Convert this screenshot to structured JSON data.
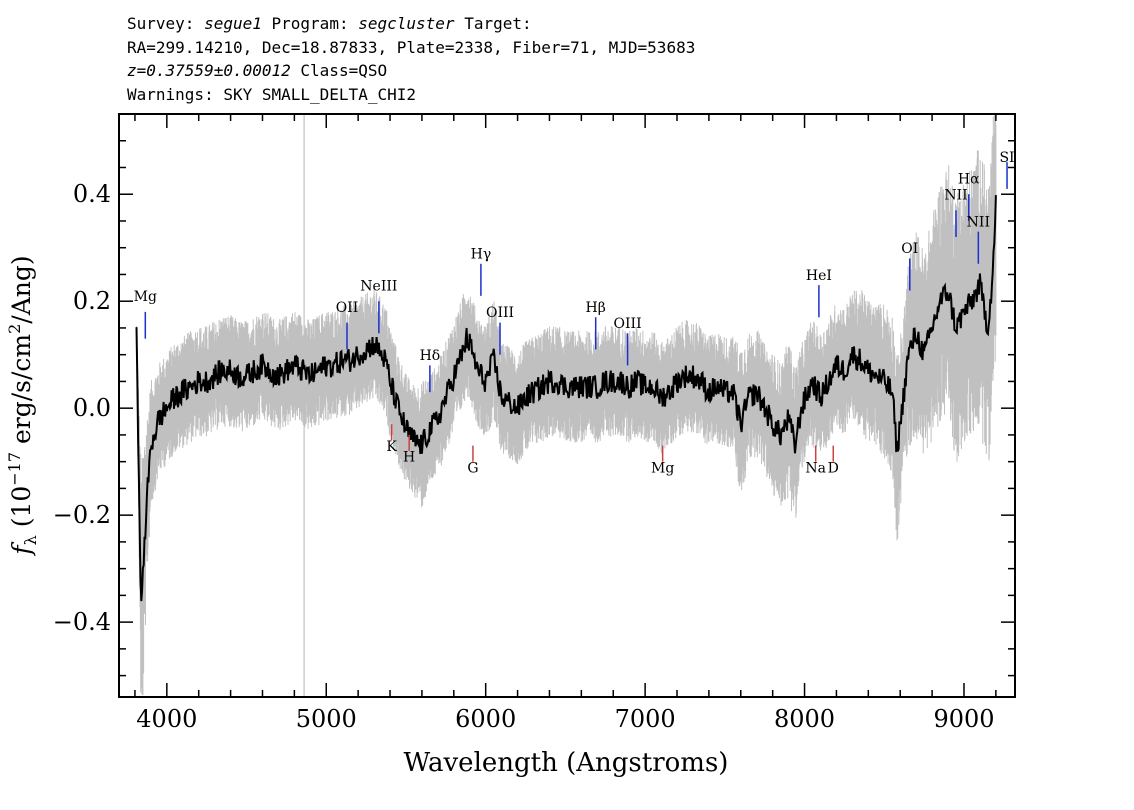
{
  "header": {
    "survey_label": "Survey:",
    "survey": "segue1",
    "program_label": "Program:",
    "program": "segcluster",
    "target_label": "Target:",
    "line2": "RA=299.14210, Dec=18.87833, Plate=2338, Fiber=71, MJD=53683",
    "redshift": "z=0.37559±0.00012",
    "class_text": "Class=QSO",
    "warnings": "Warnings: SKY SMALL_DELTA_CHI2"
  },
  "chart_data": {
    "type": "line",
    "title": "",
    "xlabel": "Wavelength (Angstroms)",
    "ylabel": "f_λ (10^-17 erg/s/cm²/Ang)",
    "xlim": [
      3700,
      9320
    ],
    "ylim": [
      -0.54,
      0.55
    ],
    "xticks": [
      4000,
      5000,
      6000,
      7000,
      8000,
      9000
    ],
    "xtick_labels": [
      "4000",
      "5000",
      "6000",
      "7000",
      "8000",
      "9000"
    ],
    "yticks": [
      -0.4,
      -0.2,
      0.0,
      0.2,
      0.4
    ],
    "ytick_labels": [
      "−0.4",
      "−0.2",
      "0.0",
      "0.2",
      "0.4"
    ],
    "grid": false,
    "series": [
      {
        "color": "#000000",
        "x": [
          3810,
          3840,
          3860,
          3880,
          3900,
          3950,
          4000,
          4050,
          4100,
          4150,
          4200,
          4250,
          4300,
          4350,
          4400,
          4450,
          4500,
          4550,
          4600,
          4650,
          4700,
          4750,
          4800,
          4850,
          4900,
          4950,
          5000,
          5050,
          5100,
          5150,
          5200,
          5250,
          5300,
          5350,
          5380,
          5400,
          5450,
          5500,
          5550,
          5600,
          5650,
          5700,
          5750,
          5800,
          5850,
          5880,
          5900,
          5950,
          6000,
          6050,
          6100,
          6150,
          6200,
          6250,
          6300,
          6350,
          6400,
          6450,
          6500,
          6550,
          6600,
          6650,
          6700,
          6750,
          6800,
          6850,
          6900,
          6950,
          7000,
          7050,
          7100,
          7150,
          7200,
          7250,
          7300,
          7350,
          7400,
          7450,
          7500,
          7550,
          7600,
          7650,
          7700,
          7750,
          7800,
          7850,
          7900,
          7940,
          7980,
          8050,
          8100,
          8150,
          8200,
          8250,
          8300,
          8350,
          8400,
          8450,
          8500,
          8550,
          8580,
          8620,
          8650,
          8700,
          8750,
          8800,
          8850,
          8900,
          8950,
          9000,
          9050,
          9100,
          9150,
          9180,
          9200
        ],
        "values": [
          0.13,
          -0.38,
          -0.25,
          -0.15,
          -0.07,
          -0.02,
          0.0,
          0.02,
          0.03,
          0.04,
          0.05,
          0.05,
          0.06,
          0.07,
          0.07,
          0.06,
          0.06,
          0.07,
          0.08,
          0.07,
          0.06,
          0.07,
          0.08,
          0.07,
          0.06,
          0.07,
          0.08,
          0.08,
          0.09,
          0.09,
          0.1,
          0.11,
          0.12,
          0.1,
          0.08,
          0.05,
          0.0,
          -0.04,
          -0.06,
          -0.07,
          -0.04,
          -0.02,
          0.02,
          0.06,
          0.1,
          0.13,
          0.12,
          0.07,
          0.05,
          0.09,
          0.02,
          0.01,
          0.0,
          0.02,
          0.03,
          0.04,
          0.05,
          0.05,
          0.04,
          0.04,
          0.04,
          0.04,
          0.04,
          0.05,
          0.05,
          0.05,
          0.04,
          0.05,
          0.04,
          0.04,
          0.02,
          0.03,
          0.05,
          0.06,
          0.06,
          0.05,
          0.03,
          0.04,
          0.03,
          0.03,
          -0.03,
          0.02,
          0.03,
          0.0,
          -0.03,
          -0.05,
          -0.02,
          -0.07,
          0.0,
          0.05,
          0.02,
          0.05,
          0.08,
          0.07,
          0.1,
          0.09,
          0.07,
          0.06,
          0.05,
          0.03,
          -0.08,
          0.02,
          0.1,
          0.14,
          0.1,
          0.15,
          0.2,
          0.22,
          0.15,
          0.18,
          0.2,
          0.23,
          0.15,
          0.25,
          0.38
        ]
      },
      {
        "color": "#c0c0c0",
        "x": [
          3810,
          3840,
          3860,
          3880,
          3900,
          3950,
          4000,
          4050,
          4100,
          4150,
          4200,
          4250,
          4300,
          4350,
          4400,
          4450,
          4500,
          4550,
          4600,
          4650,
          4700,
          4750,
          4800,
          4850,
          4900,
          4950,
          5000,
          5050,
          5100,
          5150,
          5200,
          5250,
          5300,
          5350,
          5380,
          5400,
          5450,
          5500,
          5550,
          5600,
          5650,
          5700,
          5750,
          5800,
          5850,
          5880,
          5900,
          5950,
          6000,
          6050,
          6100,
          6150,
          6200,
          6250,
          6300,
          6350,
          6400,
          6450,
          6500,
          6550,
          6600,
          6650,
          6700,
          6750,
          6800,
          6850,
          6900,
          6950,
          7000,
          7050,
          7100,
          7150,
          7200,
          7250,
          7300,
          7350,
          7400,
          7450,
          7500,
          7550,
          7600,
          7650,
          7700,
          7750,
          7800,
          7850,
          7900,
          7940,
          7980,
          8050,
          8100,
          8150,
          8200,
          8250,
          8300,
          8350,
          8400,
          8450,
          8500,
          8550,
          8580,
          8620,
          8650,
          8700,
          8750,
          8800,
          8850,
          8900,
          8950,
          9000,
          9050,
          9100,
          9150,
          9180,
          9200
        ],
        "values": [
          0.13,
          -0.38,
          -0.25,
          -0.15,
          -0.07,
          -0.02,
          0.0,
          0.02,
          0.03,
          0.04,
          0.05,
          0.05,
          0.06,
          0.07,
          0.07,
          0.06,
          0.06,
          0.07,
          0.08,
          0.07,
          0.06,
          0.07,
          0.08,
          0.07,
          0.06,
          0.07,
          0.08,
          0.08,
          0.09,
          0.09,
          0.1,
          0.11,
          0.12,
          0.1,
          0.08,
          0.05,
          0.0,
          -0.04,
          -0.06,
          -0.07,
          -0.04,
          -0.02,
          0.02,
          0.06,
          0.1,
          0.13,
          0.12,
          0.07,
          0.05,
          0.09,
          0.02,
          0.01,
          0.0,
          0.02,
          0.03,
          0.04,
          0.05,
          0.05,
          0.04,
          0.04,
          0.04,
          0.04,
          0.04,
          0.05,
          0.05,
          0.05,
          0.04,
          0.05,
          0.04,
          0.04,
          0.02,
          0.03,
          0.05,
          0.06,
          0.06,
          0.05,
          0.03,
          0.04,
          0.03,
          0.03,
          -0.03,
          0.02,
          0.03,
          0.0,
          -0.03,
          -0.05,
          -0.02,
          -0.07,
          0.0,
          0.05,
          0.02,
          0.05,
          0.08,
          0.07,
          0.1,
          0.09,
          0.07,
          0.06,
          0.05,
          0.03,
          -0.08,
          0.02,
          0.1,
          0.14,
          0.1,
          0.15,
          0.2,
          0.22,
          0.15,
          0.18,
          0.2,
          0.23,
          0.15,
          0.25,
          0.38
        ],
        "spread": [
          0.02,
          0.18,
          0.14,
          0.1,
          0.08,
          0.07,
          0.07,
          0.07,
          0.07,
          0.07,
          0.07,
          0.07,
          0.07,
          0.07,
          0.07,
          0.07,
          0.07,
          0.07,
          0.07,
          0.07,
          0.07,
          0.07,
          0.07,
          0.07,
          0.07,
          0.07,
          0.07,
          0.07,
          0.07,
          0.07,
          0.07,
          0.07,
          0.07,
          0.07,
          0.07,
          0.07,
          0.07,
          0.07,
          0.07,
          0.08,
          0.07,
          0.07,
          0.07,
          0.07,
          0.07,
          0.07,
          0.07,
          0.07,
          0.07,
          0.08,
          0.07,
          0.07,
          0.07,
          0.07,
          0.07,
          0.07,
          0.07,
          0.07,
          0.07,
          0.07,
          0.07,
          0.07,
          0.07,
          0.07,
          0.07,
          0.07,
          0.07,
          0.07,
          0.07,
          0.07,
          0.07,
          0.07,
          0.07,
          0.07,
          0.07,
          0.07,
          0.07,
          0.07,
          0.07,
          0.07,
          0.1,
          0.08,
          0.08,
          0.08,
          0.09,
          0.09,
          0.1,
          0.1,
          0.08,
          0.08,
          0.08,
          0.08,
          0.08,
          0.08,
          0.08,
          0.09,
          0.09,
          0.09,
          0.1,
          0.1,
          0.12,
          0.1,
          0.12,
          0.13,
          0.13,
          0.14,
          0.15,
          0.16,
          0.17,
          0.17,
          0.17,
          0.18,
          0.18,
          0.18,
          0.18
        ]
      }
    ],
    "sky_line_x": 4861,
    "emission_lines": [
      {
        "label": "Mg",
        "x": 3865,
        "y": 0.2,
        "tick": [
          0.18,
          0.13
        ]
      },
      {
        "label": "OII",
        "x": 5130,
        "y": 0.18,
        "tick": [
          0.16,
          0.11
        ]
      },
      {
        "label": "NeIII",
        "x": 5330,
        "y": 0.22,
        "tick": [
          0.2,
          0.14
        ]
      },
      {
        "label": "Hδ",
        "x": 5650,
        "y": 0.09,
        "tick": [
          0.08,
          0.03
        ]
      },
      {
        "label": "Hγ",
        "x": 5970,
        "y": 0.28,
        "tick": [
          0.27,
          0.21
        ]
      },
      {
        "label": "OIII",
        "x": 6090,
        "y": 0.17,
        "tick": [
          0.16,
          0.1
        ]
      },
      {
        "label": "Hβ",
        "x": 6690,
        "y": 0.18,
        "tick": [
          0.17,
          0.11
        ]
      },
      {
        "label": "OIII",
        "x": 6890,
        "y": 0.15,
        "tick": [
          0.14,
          0.08
        ]
      },
      {
        "label": "HeI",
        "x": 8090,
        "y": 0.24,
        "tick": [
          0.23,
          0.17
        ]
      },
      {
        "label": "OI",
        "x": 8660,
        "y": 0.29,
        "tick": [
          0.28,
          0.22
        ]
      },
      {
        "label": "NII",
        "x": 8950,
        "y": 0.39,
        "tick": [
          0.37,
          0.32
        ]
      },
      {
        "label": "Hα",
        "x": 9030,
        "y": 0.42,
        "tick": [
          0.4,
          0.35
        ]
      },
      {
        "label": "NII",
        "x": 9090,
        "y": 0.34,
        "tick": [
          0.33,
          0.27
        ]
      },
      {
        "label": "SI",
        "x": 9270,
        "y": 0.46,
        "tick": [
          0.46,
          0.41
        ]
      }
    ],
    "absorption_lines": [
      {
        "label": "K",
        "x": 5410,
        "y": -0.08,
        "tick": [
          -0.03,
          -0.06
        ]
      },
      {
        "label": "H",
        "x": 5520,
        "y": -0.1,
        "tick": [
          -0.05,
          -0.08
        ]
      },
      {
        "label": "G",
        "x": 5920,
        "y": -0.12,
        "tick": [
          -0.07,
          -0.1
        ]
      },
      {
        "label": "Mg",
        "x": 7110,
        "y": -0.12,
        "tick": [
          -0.07,
          -0.1
        ]
      },
      {
        "label": "Na",
        "x": 8070,
        "y": -0.12,
        "tick": [
          -0.07,
          -0.1
        ]
      },
      {
        "label": "D",
        "x": 8180,
        "y": -0.12,
        "tick": [
          -0.07,
          -0.1
        ]
      }
    ],
    "colors": {
      "flux": "#000000",
      "error": "#c0c0c0",
      "emission": "#1a2fd0",
      "absorption": "#d04040"
    }
  }
}
